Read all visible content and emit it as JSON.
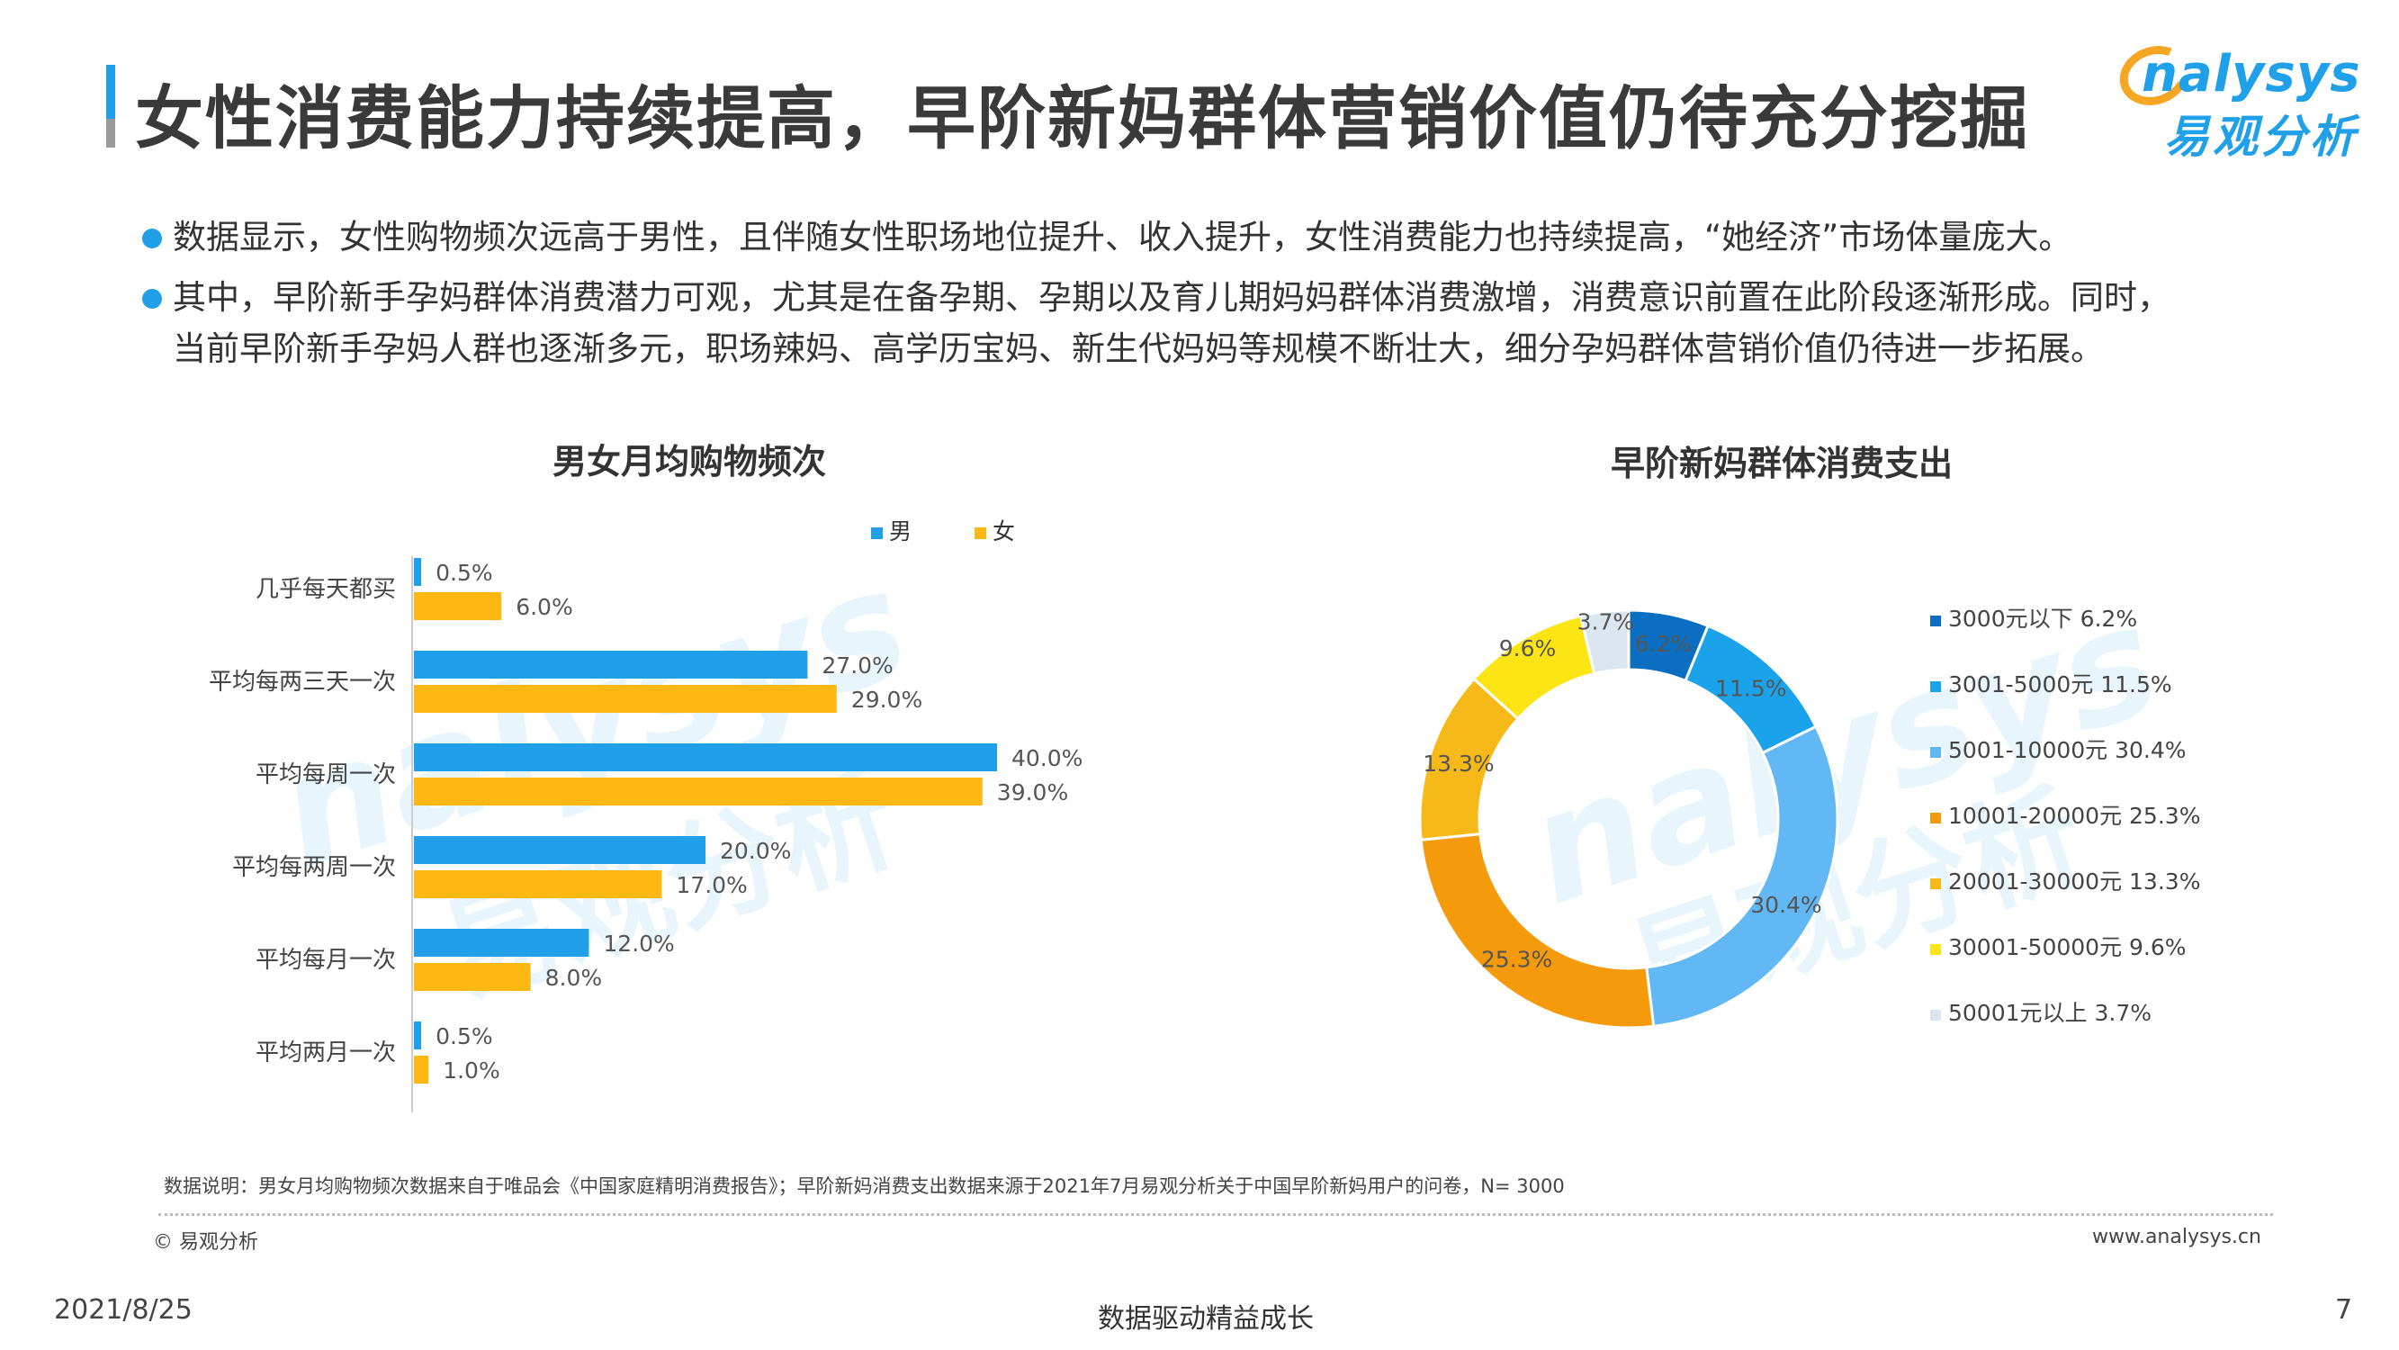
{
  "page": {
    "title": "女性消费能力持续提高，早阶新妈群体营销价值仍待充分挖掘",
    "logo": {
      "en": "nalysys",
      "cn": "易观分析"
    },
    "bullets": [
      "数据显示，女性购物频次远高于男性，且伴随女性职场地位提升、收入提升，女性消费能力也持续提高，“她经济”市场体量庞大。",
      "其中，早阶新手孕妈群体消费潜力可观，尤其是在备孕期、孕期以及育儿期妈妈群体消费激增，消费意识前置在此阶段逐渐形成。同时，",
      "当前早阶新手孕妈人群也逐渐多元，职场辣妈、高学历宝妈、新生代妈妈等规模不断壮大，细分孕妈群体营销价值仍待进一步拓展。"
    ],
    "watermark": {
      "en": "nalysys",
      "cn": "易观分析"
    },
    "note": "数据说明：男女月均购物频次数据来自于唯品会《中国家庭精明消费报告》；早阶新妈消费支出数据来源于2021年7月易观分析关于中国早阶新妈用户的问卷，N= 3000",
    "copyright": "© 易观分析",
    "site": "www.analysys.cn",
    "date": "2021/8/25",
    "slogan": "数据驱动精益成长",
    "page_number": "7"
  },
  "chart_data": [
    {
      "type": "bar",
      "orientation": "horizontal",
      "title": "男女月均购物频次",
      "categories": [
        "几乎每天都买",
        "平均每两三天一次",
        "平均每周一次",
        "平均每两周一次",
        "平均每月一次",
        "平均两月一次"
      ],
      "series": [
        {
          "name": "男",
          "color": "#1fa0e8",
          "values": [
            0.5,
            27.0,
            40.0,
            20.0,
            12.0,
            0.5
          ],
          "labels": [
            "0.5%",
            "27.0%",
            "40.0%",
            "20.0%",
            "12.0%",
            "0.5%"
          ]
        },
        {
          "name": "女",
          "color": "#fdb813",
          "values": [
            6.0,
            29.0,
            39.0,
            17.0,
            8.0,
            1.0
          ],
          "labels": [
            "6.0%",
            "29.0%",
            "39.0%",
            "17.0%",
            "8.0%",
            "1.0%"
          ]
        }
      ],
      "unit": "%",
      "legend": "top"
    },
    {
      "type": "pie",
      "variant": "donut",
      "title": "早阶新妈群体消费支出",
      "slices": [
        {
          "label": "3000元以下",
          "value": 6.2,
          "text": "6.2%",
          "legend": "3000元以下 6.2%",
          "color": "#0a6fc2"
        },
        {
          "label": "3001-5000元",
          "value": 11.5,
          "text": "11.5%",
          "legend": "3001-5000元 11.5%",
          "color": "#1aa3ea"
        },
        {
          "label": "5001-10000元",
          "value": 30.4,
          "text": "30.4%",
          "legend": "5001-10000元 30.4%",
          "color": "#62b8f5"
        },
        {
          "label": "10001-20000元",
          "value": 25.3,
          "text": "25.3%",
          "legend": "10001-20000元 25.3%",
          "color": "#f59b0b"
        },
        {
          "label": "20001-30000元",
          "value": 13.3,
          "text": "13.3%",
          "legend": "20001-30000元 13.3%",
          "color": "#f7b918"
        },
        {
          "label": "30001-50000元",
          "value": 9.6,
          "text": "9.6%",
          "legend": "30001-50000元 9.6%",
          "color": "#fde415"
        },
        {
          "label": "50001元以上",
          "value": 3.7,
          "text": "3.7%",
          "legend": "50001元以上 3.7%",
          "color": "#dce6f1"
        }
      ],
      "legend": "right"
    }
  ]
}
